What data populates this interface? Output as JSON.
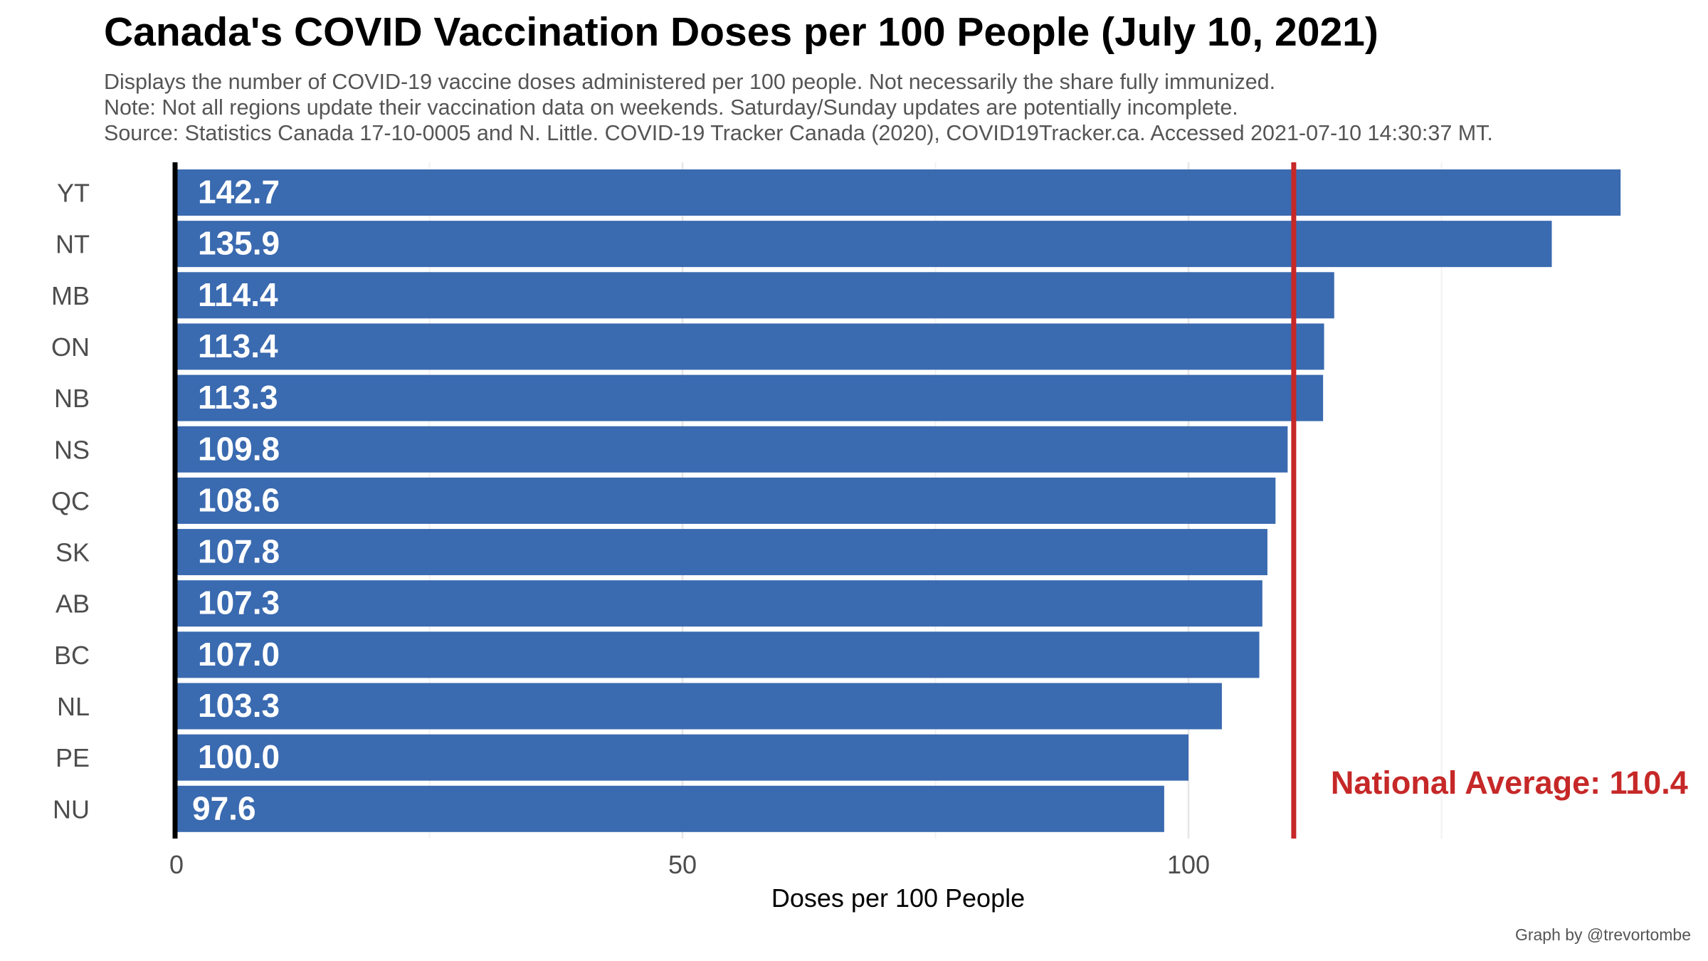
{
  "chart_data": {
    "type": "bar",
    "orientation": "horizontal",
    "title": "Canada's COVID Vaccination Doses per 100 People (July 10, 2021)",
    "subtitle_lines": [
      "Displays the number of COVID-19 vaccine doses administered per 100 people. Not necessarily the share fully immunized.",
      "Note: Not all regions update their vaccination data on weekends. Saturday/Sunday updates are potentially incomplete.",
      "Source: Statistics Canada 17-10-0005 and N. Little. COVID-19 Tracker Canada (2020), COVID19Tracker.ca. Accessed 2021-07-10 14:30:37 MT."
    ],
    "categories": [
      "YT",
      "NT",
      "MB",
      "ON",
      "NB",
      "NS",
      "QC",
      "SK",
      "AB",
      "BC",
      "NL",
      "PE",
      "NU"
    ],
    "values": [
      142.7,
      135.9,
      114.4,
      113.4,
      113.3,
      109.8,
      108.6,
      107.8,
      107.3,
      107.0,
      103.3,
      100.0,
      97.6
    ],
    "value_labels": [
      "142.7",
      "135.9",
      "114.4",
      "113.4",
      "113.3",
      "109.8",
      "108.6",
      "107.8",
      "107.3",
      "107.0",
      "103.3",
      "100.0",
      "97.6"
    ],
    "xlabel": "Doses per 100 People",
    "ylabel": "",
    "xlim": [
      0,
      148
    ],
    "x_ticks": [
      0,
      50,
      100
    ],
    "grid": "vertical major gridlines",
    "legend": "none",
    "reference_line": {
      "value": 110.4,
      "label": "National Average: 110.4"
    },
    "caption": "Graph by @trevortombe",
    "colors": {
      "bar": "#3A6AB0",
      "bar_label": "#ffffff",
      "reference_line": "#C62828",
      "reference_label": "#C62828",
      "zero_line": "#000000",
      "grid": "#E6E6E6",
      "axis_text": "#4D4D4D"
    }
  }
}
